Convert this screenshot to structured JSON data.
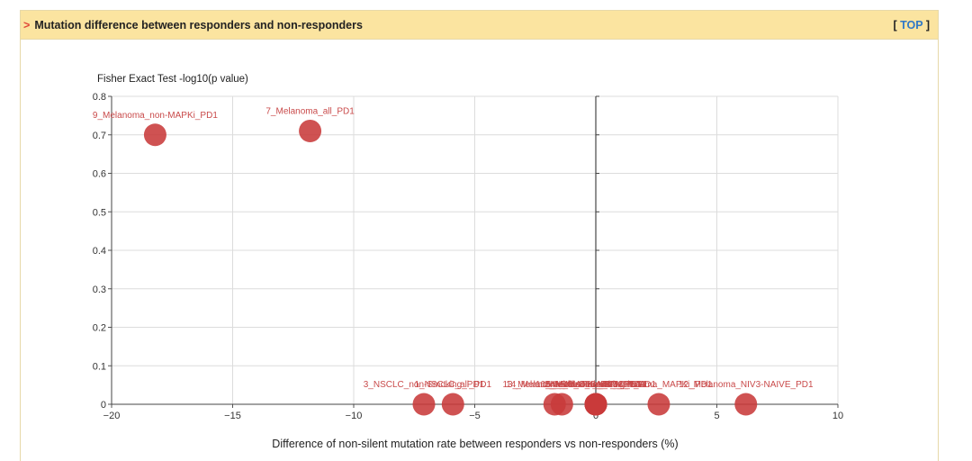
{
  "panel": {
    "caret": ">",
    "title": "Mutation difference between responders and non-responders",
    "top_link": {
      "open": "[ ",
      "text": "TOP",
      "close": " ]"
    }
  },
  "chart_data": {
    "type": "scatter",
    "title": "",
    "ylabel": "Fisher Exact Test -log10(p value)",
    "xlabel": "Difference of non-silent mutation rate between responders vs non-responders (%)",
    "xlim": [
      -20,
      10
    ],
    "ylim": [
      0,
      0.8
    ],
    "xticks": [
      -20,
      -15,
      -10,
      -5,
      0,
      5,
      10
    ],
    "yticks": [
      0,
      0.1,
      0.2,
      0.3,
      0.4,
      0.5,
      0.6,
      0.7,
      0.8
    ],
    "grid": true,
    "point_color": "#c83a3a",
    "points": [
      {
        "label": "9_Melanoma_non-MAPKi_PD1",
        "x": -18.2,
        "y": 0.7
      },
      {
        "label": "7_Melanoma_all_PD1",
        "x": -11.8,
        "y": 0.71
      },
      {
        "label": "3_NSCLC_non-Smoking_PD1",
        "x": -7.1,
        "y": 0
      },
      {
        "label": "1_NSCLC_all_PD1",
        "x": -5.9,
        "y": 0
      },
      {
        "label": "13_Melanoma_all_CTLA4",
        "x": -1.7,
        "y": 0
      },
      {
        "label": "14_Melanoma_MAPKi_PD1",
        "x": -1.4,
        "y": 0
      },
      {
        "label": "2_NSCLC_Smoking_PD1",
        "x": 0,
        "y": 0
      },
      {
        "label": "4_Melanoma_IPI_PD1",
        "x": 0,
        "y": 0
      },
      {
        "label": "5_Melanoma_NIV3_PD1",
        "x": 0,
        "y": 0
      },
      {
        "label": "6_Melanoma_IPI_CTLA4",
        "x": 0,
        "y": 0
      },
      {
        "label": "10_Melanoma_NIV3_IPI_PD1",
        "x": 0,
        "y": 0
      },
      {
        "label": "8_Melanoma_MAPKi_PD1",
        "x": 2.6,
        "y": 0
      },
      {
        "label": "12_Melanoma_NIV3-NAIVE_PD1",
        "x": 6.2,
        "y": 0
      }
    ]
  }
}
